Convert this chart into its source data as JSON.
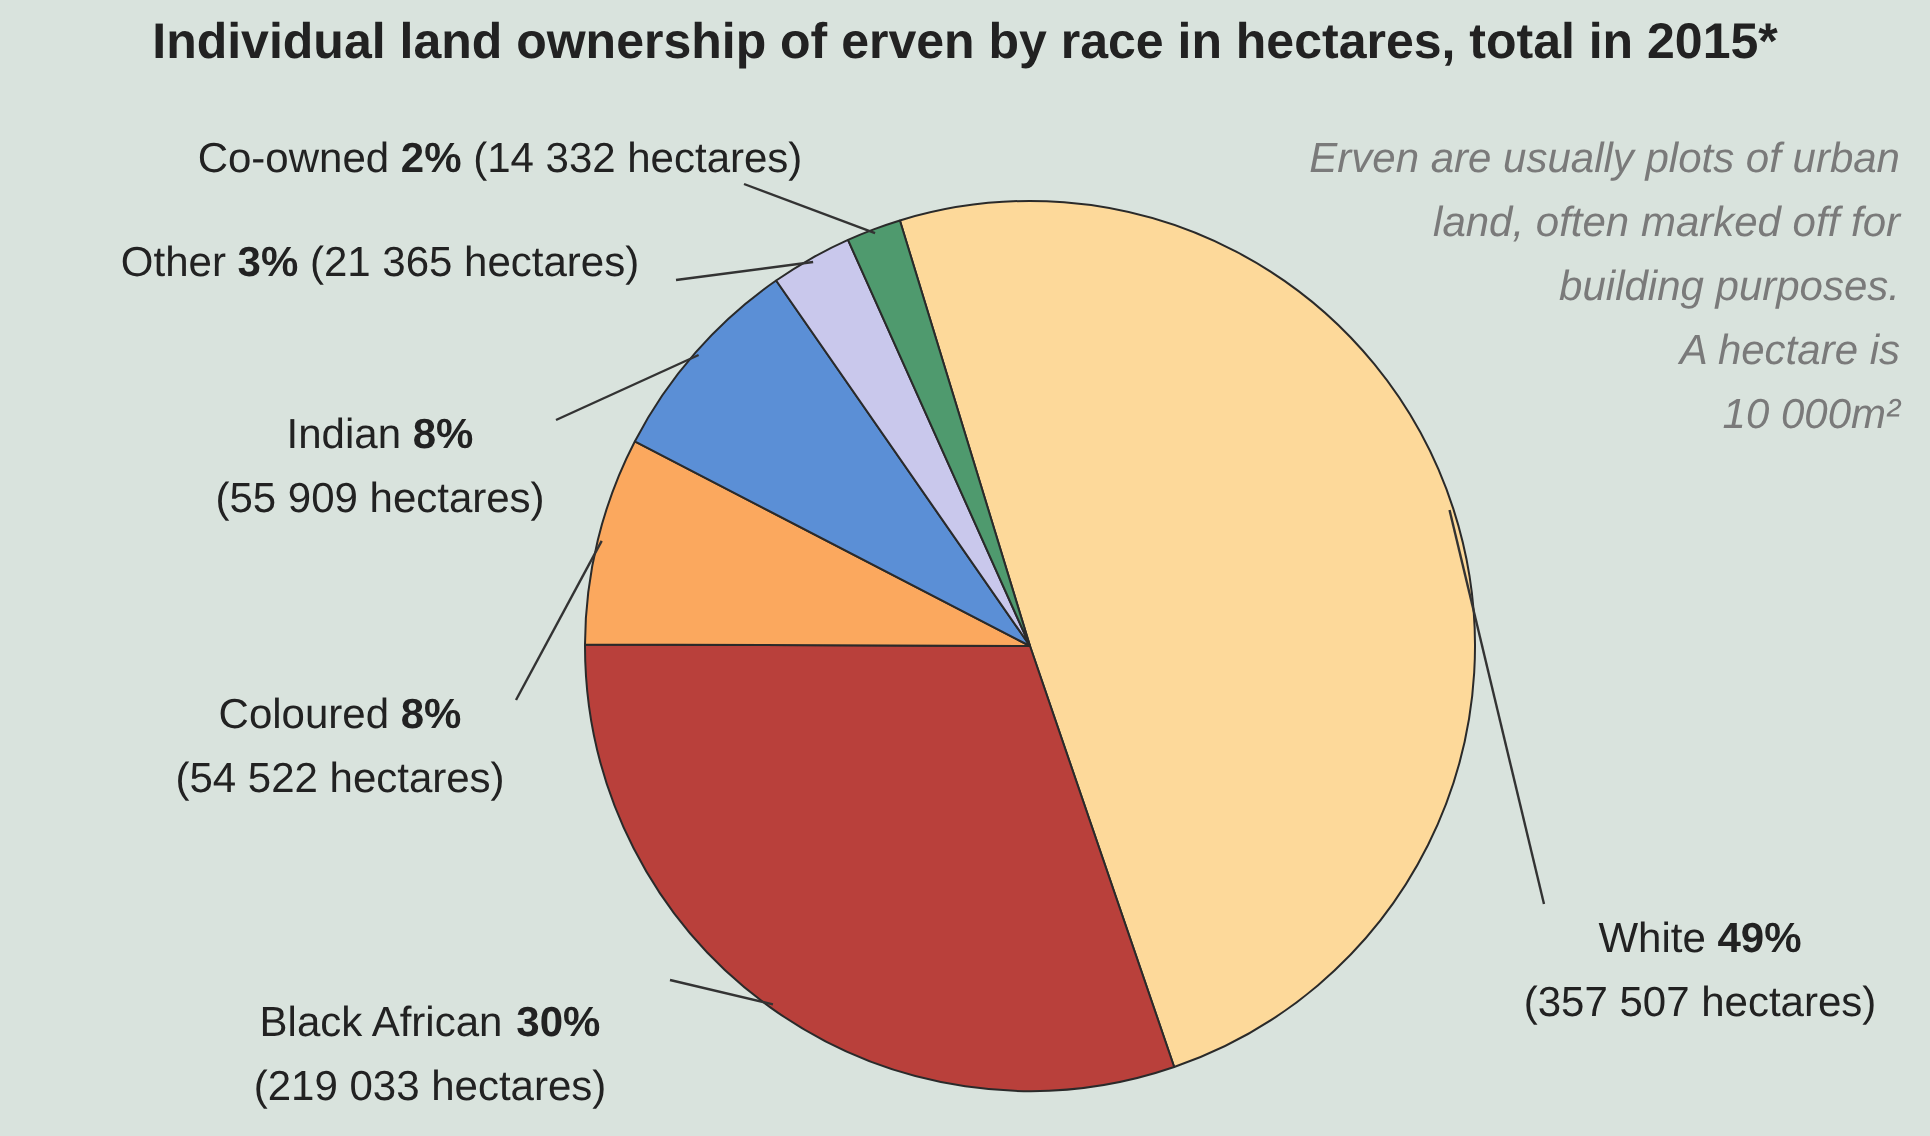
{
  "chart_data": {
    "type": "pie",
    "title": "Individual land ownership of erven by race in hectares, total in 2015*",
    "categories": [
      "White",
      "Black African",
      "Coloured",
      "Indian",
      "Other",
      "Co-owned"
    ],
    "values": [
      357507,
      219033,
      54522,
      55909,
      21365,
      14332
    ],
    "colors": [
      "#fdd99a",
      "#b9403b",
      "#fba85e",
      "#5b8fd6",
      "#c9c8ec",
      "#4f9a6e"
    ],
    "value_labels": [
      "49% (357 507 hectares)",
      "30% (219 033 hectares)",
      "8% (54 522 hectares)",
      "8% (55 909 hectares)",
      "3% (21 365 hectares)",
      "2% (14 332 hectares)"
    ],
    "annotations": [
      "Erven are usually plots of urban land, often marked off for building purposes. A hectare is 10 000m²"
    ],
    "legend": false
  }
}
